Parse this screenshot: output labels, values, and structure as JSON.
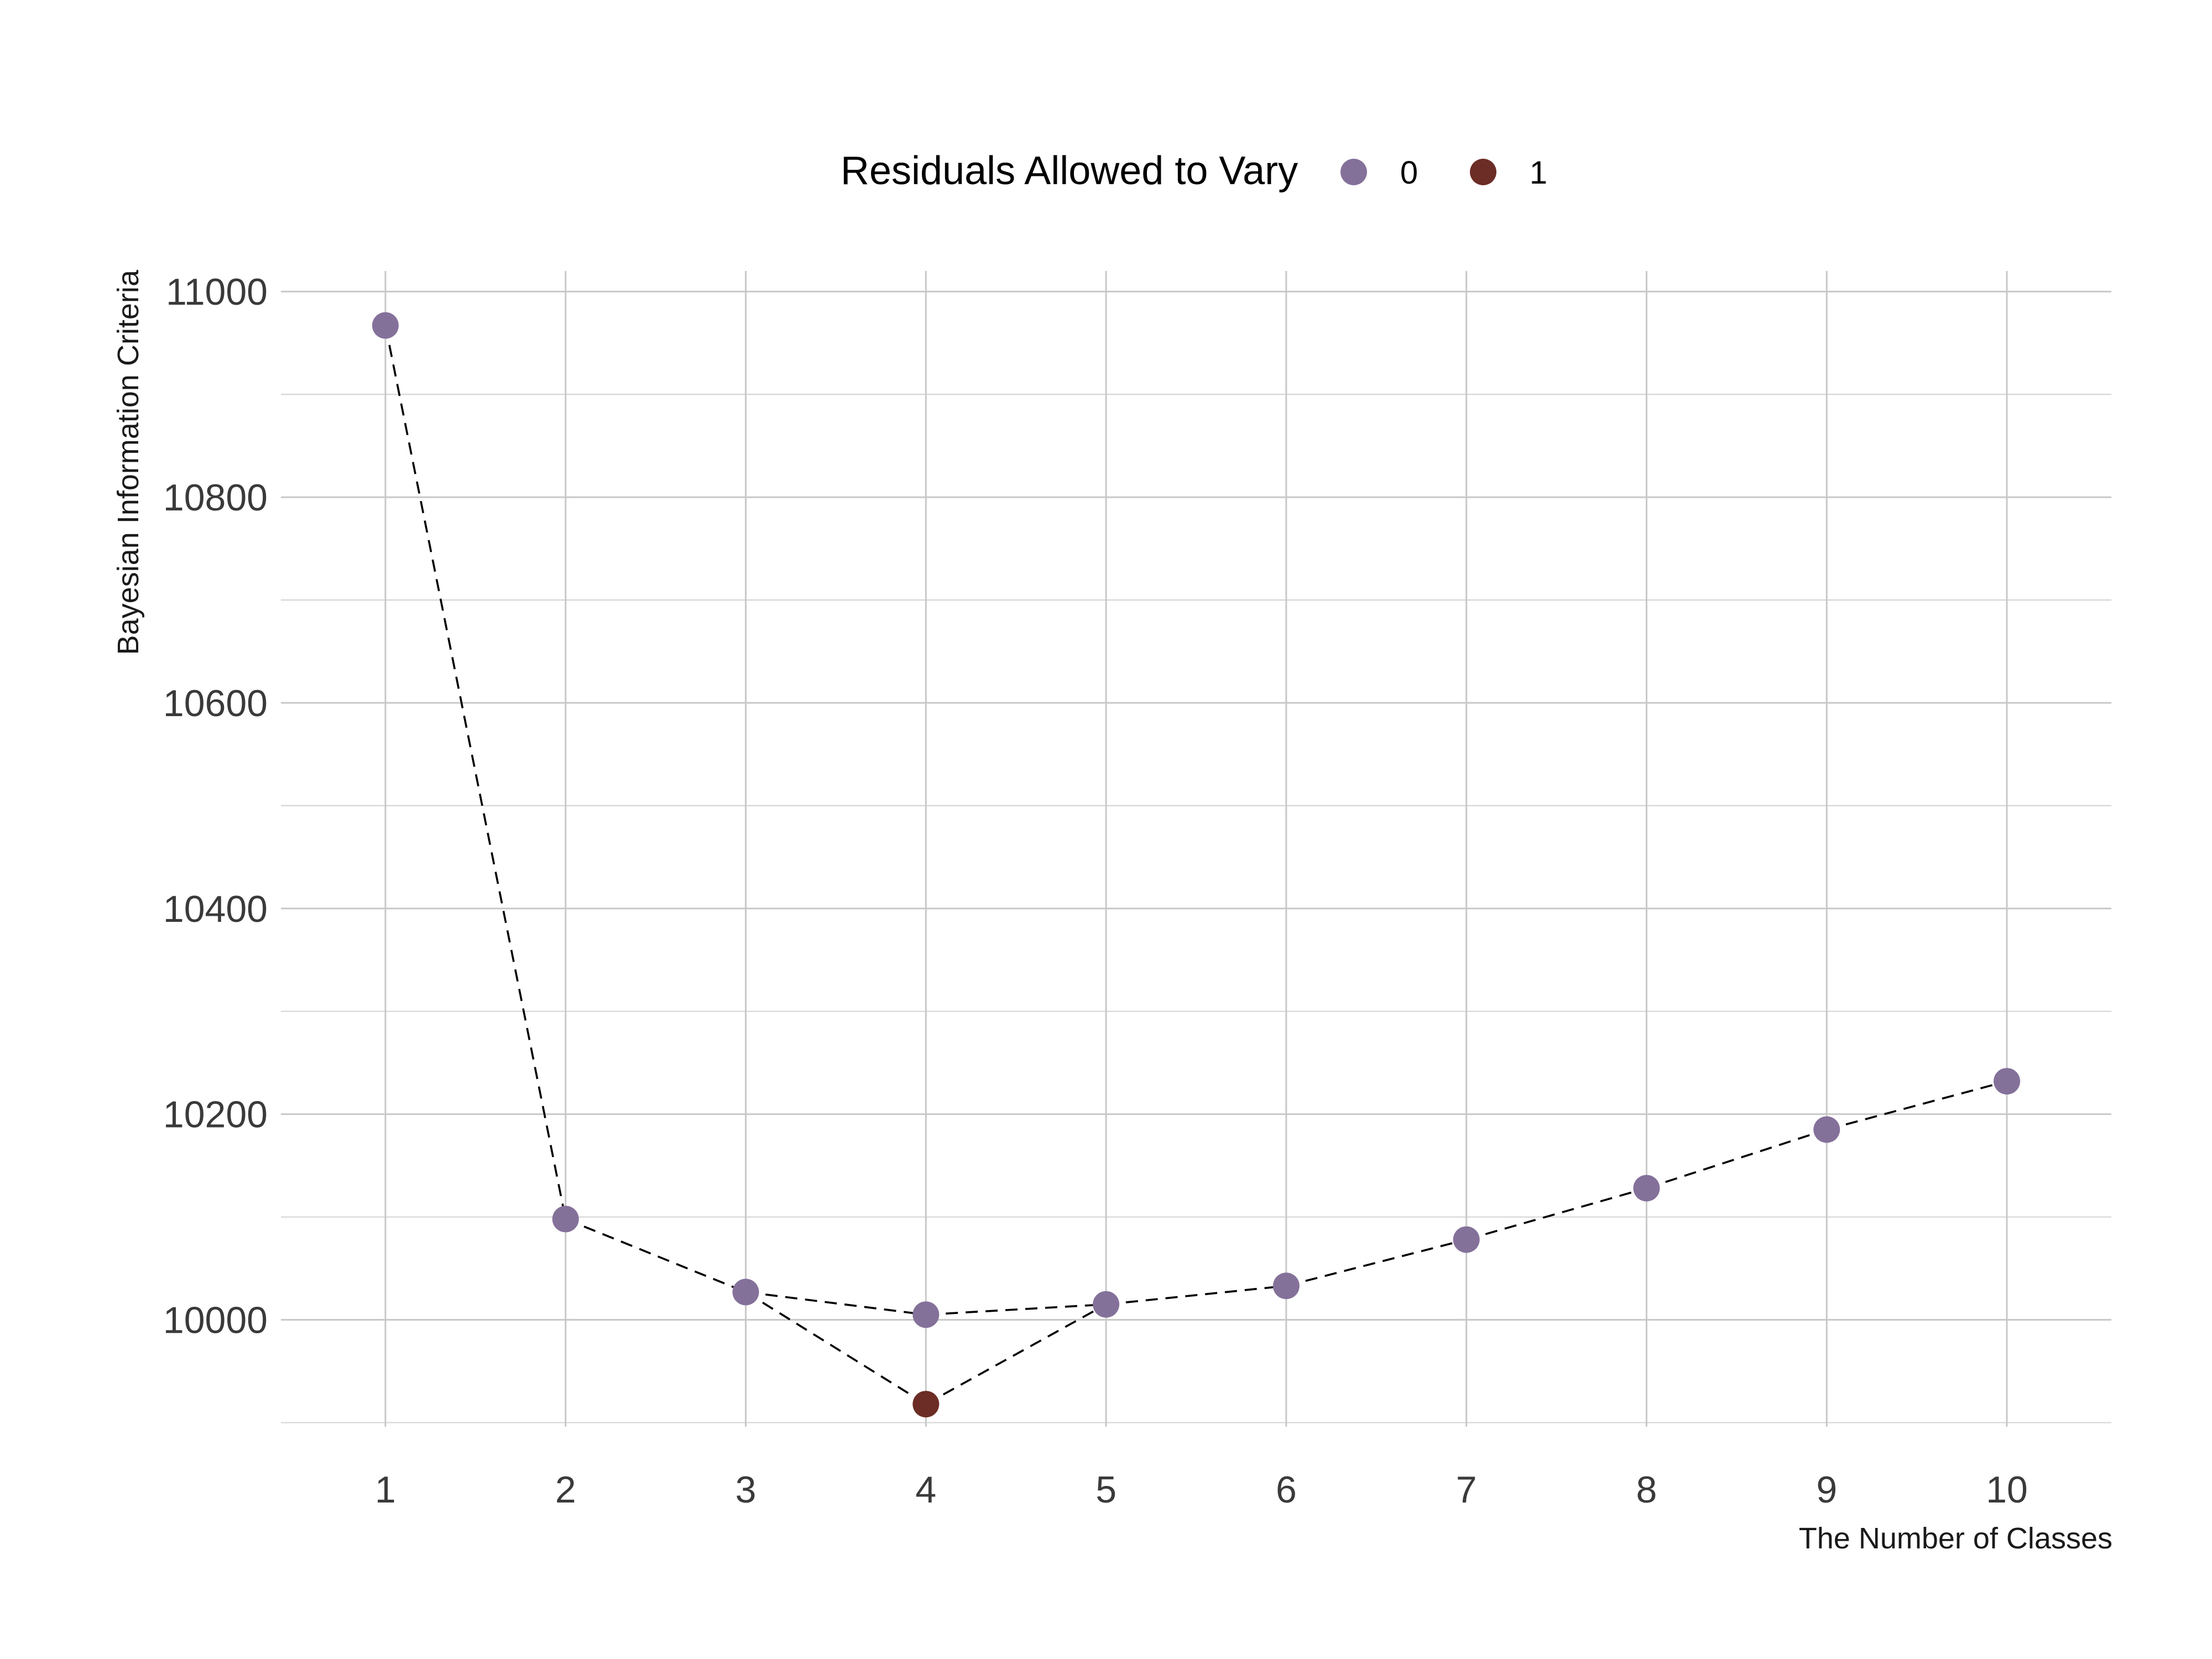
{
  "chart_data": {
    "type": "scatter",
    "title": "",
    "xlabel": "The Number of Classes",
    "ylabel": "Bayesian Information Criteria",
    "x_ticks": [
      1,
      2,
      3,
      4,
      5,
      6,
      7,
      8,
      9,
      10
    ],
    "y_ticks": [
      10000,
      10200,
      10400,
      10600,
      10800,
      11000
    ],
    "xlim": [
      0.42,
      10.58
    ],
    "ylim": [
      9896,
      11020
    ],
    "grid": true,
    "legend": {
      "title": "Residuals Allowed to Vary",
      "position": "top",
      "entries": [
        {
          "label": "0",
          "color": "#84719a"
        },
        {
          "label": "1",
          "color": "#6b2d26"
        }
      ]
    },
    "line_style": "dashed",
    "series": [
      {
        "name": "0",
        "color": "#84719a",
        "x": [
          1,
          2,
          3,
          4,
          5,
          6,
          7,
          8,
          9,
          10
        ],
        "y": [
          10967,
          10098,
          10027,
          10005,
          10015,
          10033,
          10078,
          10128,
          10185,
          10232
        ]
      },
      {
        "name": "1",
        "color": "#6b2d26",
        "x": [
          4
        ],
        "y": [
          9918
        ]
      }
    ],
    "path": {
      "x": [
        1,
        2,
        3,
        4,
        5,
        6,
        7,
        8,
        9,
        10
      ],
      "y_via": "series 0 at x=1-3, series 1 at x=4, series 0 at x=5-10",
      "y": [
        10967,
        10098,
        10027,
        9918,
        10015,
        10033,
        10078,
        10128,
        10185,
        10232
      ]
    }
  }
}
